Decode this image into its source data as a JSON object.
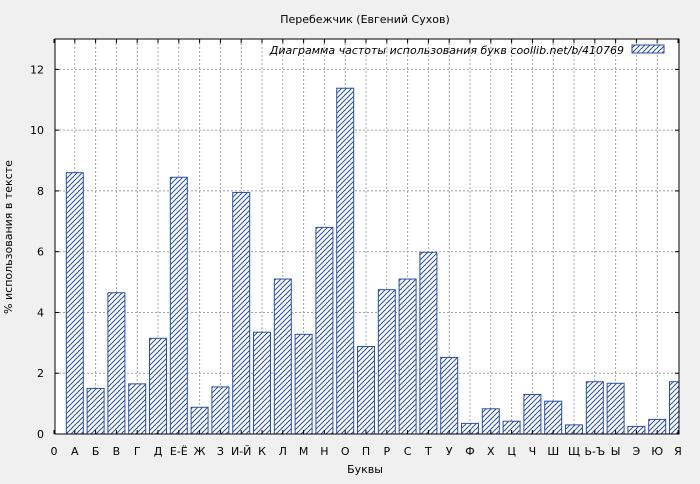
{
  "chart_data": {
    "type": "bar",
    "title": "Перебежчик (Евгений Сухов)",
    "xlabel": "Буквы",
    "ylabel": "% использования в тексте",
    "legend": {
      "label": "Диаграмма частоты использования букв  coollib.net/b/410769",
      "placement": "top-right"
    },
    "ylim": [
      0,
      13
    ],
    "yticks": [
      0,
      2,
      4,
      6,
      8,
      10,
      12
    ],
    "grid": true,
    "categories": [
      "0",
      "А",
      "Б",
      "В",
      "Г",
      "Д",
      "Е-Ё",
      "Ж",
      "З",
      "И-Й",
      "К",
      "Л",
      "М",
      "Н",
      "О",
      "П",
      "Р",
      "С",
      "Т",
      "У",
      "Ф",
      "Х",
      "Ц",
      "Ч",
      "Ш",
      "Щ",
      "Ь-Ъ",
      "Ы",
      "Э",
      "Ю",
      "Я"
    ],
    "values": [
      null,
      8.6,
      1.5,
      4.65,
      1.65,
      3.15,
      8.45,
      0.88,
      1.55,
      7.95,
      3.35,
      5.1,
      3.28,
      6.8,
      11.38,
      2.88,
      4.75,
      5.1,
      5.98,
      2.52,
      0.35,
      0.83,
      0.42,
      1.3,
      1.08,
      0.3,
      1.72,
      1.67,
      0.25,
      0.48,
      1.72
    ],
    "colors": {
      "bar_stroke": "#2a4fa0",
      "hatch": "#2a4fa0",
      "bar_fill": "#ffffff",
      "plot_bg": "#ffffff",
      "page_bg": "#f0f0f0",
      "grid": "#a0a0a0"
    }
  }
}
